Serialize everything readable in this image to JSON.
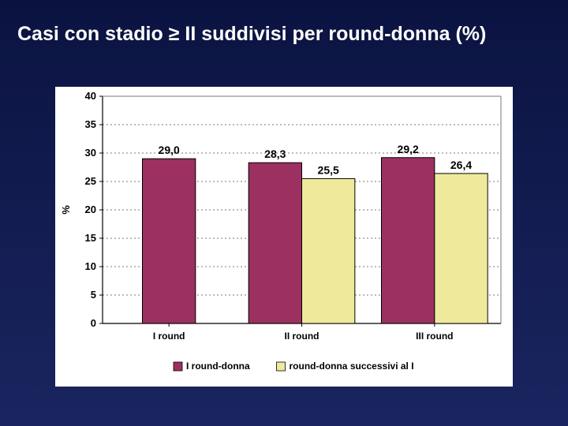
{
  "title": "Casi con stadio ≥ II suddivisi per round-donna (%)",
  "chart": {
    "type": "bar-grouped",
    "background_color": "#ffffff",
    "plot_border_color": "#7a7a7a",
    "grid_color": "#7a7a7a",
    "grid_dash": "2,3",
    "ylabel": "%",
    "ylabel_fontsize": 13,
    "tick_fontsize": 13,
    "cat_fontsize": 12,
    "value_fontsize": 14,
    "legend_fontsize": 12,
    "ylim": [
      0,
      40
    ],
    "ytick_step": 5,
    "categories": [
      "I round",
      "II round",
      "III round"
    ],
    "series": [
      {
        "name": "I round-donna",
        "color": "#9c3061",
        "stroke": "#000000",
        "values": [
          29.0,
          28.3,
          29.2
        ],
        "labels": [
          "29,0",
          "28,3",
          "29,2"
        ]
      },
      {
        "name": "round-donna successivi al I",
        "color": "#efe99c",
        "stroke": "#000000",
        "values": [
          null,
          25.5,
          26.4
        ],
        "labels": [
          null,
          "25,5",
          "26,4"
        ]
      }
    ],
    "bar_width": 0.4,
    "group_gap": 0.6
  }
}
